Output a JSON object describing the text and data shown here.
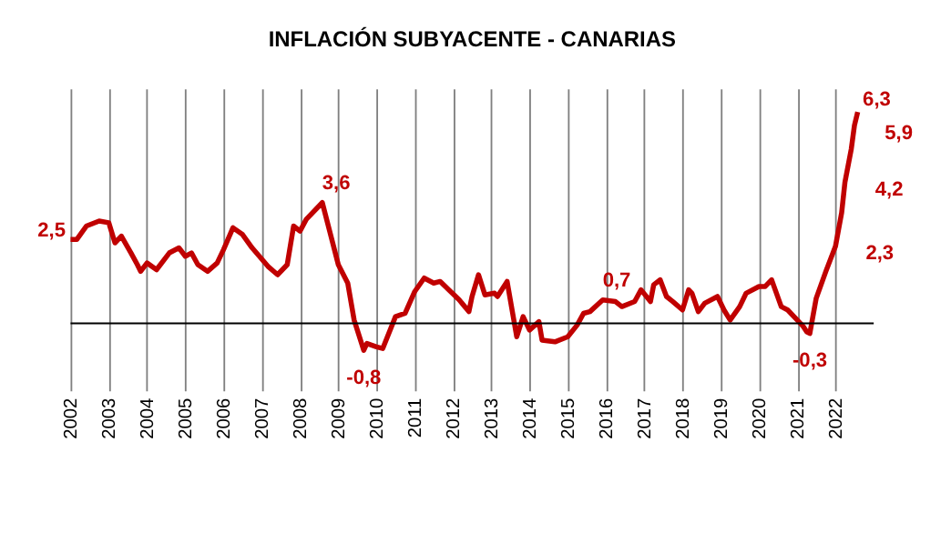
{
  "chart_data": {
    "type": "line",
    "title": "INFLACIÓN SUBYACENTE - CANARIAS",
    "x": [
      "2002-01",
      "2002-03",
      "2002-06",
      "2002-10",
      "2003-01",
      "2003-03",
      "2003-05",
      "2003-08",
      "2003-10",
      "2003-11",
      "2004-01",
      "2004-04",
      "2004-08",
      "2004-11",
      "2005-01",
      "2005-03",
      "2005-05",
      "2005-08",
      "2005-11",
      "2006-01",
      "2006-04",
      "2006-07",
      "2006-10",
      "2007-03",
      "2007-06",
      "2007-09",
      "2007-11",
      "2008-01",
      "2008-03",
      "2008-08",
      "2009-01",
      "2009-04",
      "2009-06",
      "2009-09",
      "2009-10",
      "2010-01",
      "2010-03",
      "2010-07",
      "2010-10",
      "2011-01",
      "2011-04",
      "2011-07",
      "2011-09",
      "2012-03",
      "2012-06",
      "2012-07",
      "2012-09",
      "2012-11",
      "2013-02",
      "2013-03",
      "2013-06",
      "2013-09",
      "2013-11",
      "2014-01",
      "2014-04",
      "2014-05",
      "2014-09",
      "2015-01",
      "2015-04",
      "2015-06",
      "2015-08",
      "2015-12",
      "2016-04",
      "2016-06",
      "2016-10",
      "2016-12",
      "2017-03",
      "2017-04",
      "2017-06",
      "2017-08",
      "2017-10",
      "2018-01",
      "2018-03",
      "2018-04",
      "2018-06",
      "2018-08",
      "2018-12",
      "2019-02",
      "2019-04",
      "2019-07",
      "2019-09",
      "2020-01",
      "2020-03",
      "2020-05",
      "2020-08",
      "2020-10",
      "2021-01",
      "2021-03",
      "2021-04",
      "2021-05",
      "2021-07",
      "2021-10",
      "2022-01",
      "2022-03",
      "2022-04",
      "2022-06",
      "2022-07",
      "2022-08"
    ],
    "series": [
      {
        "color": "#c00000",
        "values": [
          2.5,
          2.5,
          2.9,
          3.05,
          3.0,
          2.4,
          2.6,
          2.1,
          1.75,
          1.55,
          1.8,
          1.6,
          2.1,
          2.25,
          2.0,
          2.1,
          1.75,
          1.55,
          1.8,
          2.2,
          2.85,
          2.65,
          2.25,
          1.7,
          1.45,
          1.75,
          2.9,
          2.75,
          3.1,
          3.6,
          1.75,
          1.2,
          0.1,
          -0.8,
          -0.6,
          -0.7,
          -0.75,
          0.2,
          0.3,
          0.95,
          1.35,
          1.2,
          1.25,
          0.7,
          0.35,
          0.8,
          1.45,
          0.85,
          0.9,
          0.8,
          1.25,
          -0.4,
          0.2,
          -0.2,
          0.05,
          -0.5,
          -0.55,
          -0.4,
          -0.05,
          0.3,
          0.35,
          0.7,
          0.65,
          0.5,
          0.65,
          1.0,
          0.65,
          1.15,
          1.3,
          0.8,
          0.65,
          0.4,
          1.0,
          0.9,
          0.35,
          0.6,
          0.8,
          0.4,
          0.1,
          0.5,
          0.9,
          1.1,
          1.1,
          1.3,
          0.5,
          0.4,
          0.1,
          -0.1,
          -0.25,
          -0.3,
          0.75,
          1.55,
          2.3,
          3.3,
          4.2,
          5.2,
          5.9,
          6.3
        ],
        "value_labels": [
          "2,5",
          null,
          null,
          null,
          null,
          null,
          null,
          null,
          null,
          null,
          null,
          null,
          null,
          null,
          null,
          null,
          null,
          null,
          null,
          null,
          null,
          null,
          null,
          null,
          null,
          null,
          null,
          null,
          null,
          "3,6",
          null,
          null,
          null,
          "-0,8",
          null,
          null,
          null,
          null,
          null,
          null,
          null,
          null,
          null,
          null,
          null,
          null,
          null,
          null,
          null,
          null,
          null,
          null,
          null,
          null,
          null,
          null,
          null,
          null,
          null,
          null,
          null,
          "0,7",
          null,
          null,
          null,
          null,
          null,
          null,
          null,
          null,
          null,
          null,
          null,
          null,
          null,
          null,
          null,
          null,
          null,
          null,
          null,
          null,
          null,
          null,
          null,
          null,
          null,
          null,
          null,
          "-0,3",
          null,
          null,
          "2,3",
          null,
          "4,2",
          null,
          "5,9",
          "6,3"
        ]
      }
    ],
    "xlim": [
      "2002-01",
      "2023-01"
    ],
    "ylim": [
      -2,
      7
    ],
    "xticks": [
      "2002",
      "2003",
      "2004",
      "2005",
      "2006",
      "2007",
      "2008",
      "2009",
      "2010",
      "2011",
      "2012",
      "2013",
      "2014",
      "2015",
      "2016",
      "2017",
      "2018",
      "2019",
      "2020",
      "2021",
      "2022"
    ],
    "grid": "x",
    "tick_labels": "x",
    "marker": "none",
    "line_style": "solid",
    "ref_lines": [
      {
        "axis": "y",
        "value": 0,
        "color": "#000000"
      }
    ]
  }
}
